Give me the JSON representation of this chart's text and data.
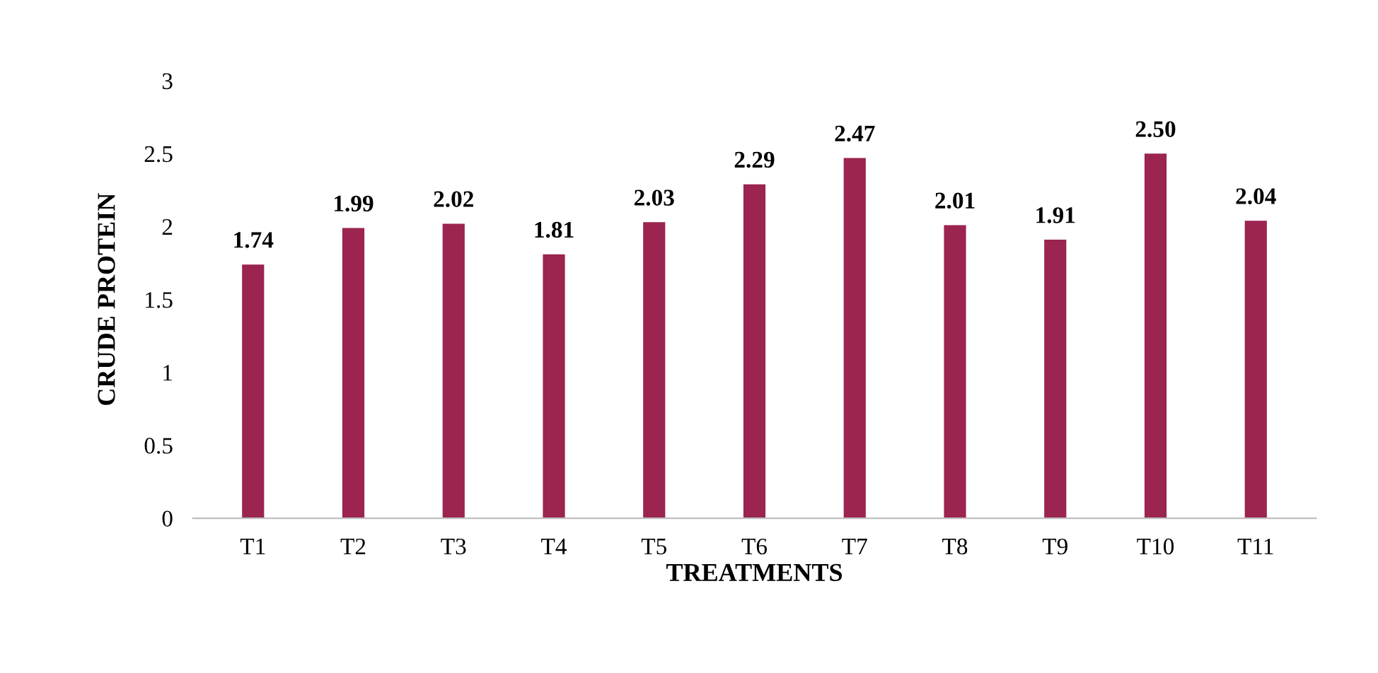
{
  "chart_data": {
    "type": "bar",
    "xlabel": "TREATMENTS",
    "ylabel": "CRUDE PROTEIN",
    "categories": [
      "T1",
      "T2",
      "T3",
      "T4",
      "T5",
      "T6",
      "T7",
      "T8",
      "T9",
      "T10",
      "T11"
    ],
    "values": [
      1.74,
      1.99,
      2.02,
      1.81,
      2.03,
      2.29,
      2.47,
      2.01,
      1.91,
      2.5,
      2.04
    ],
    "value_labels": [
      "1.74",
      "1.99",
      "2.02",
      "1.81",
      "2.03",
      "2.29",
      "2.47",
      "2.01",
      "1.91",
      "2.50",
      "2.04"
    ],
    "color": "#9b2450",
    "ylim": [
      0,
      3
    ],
    "yticks": [
      0,
      0.5,
      1,
      1.5,
      2,
      2.5,
      3
    ],
    "grid": false,
    "legend": false
  }
}
